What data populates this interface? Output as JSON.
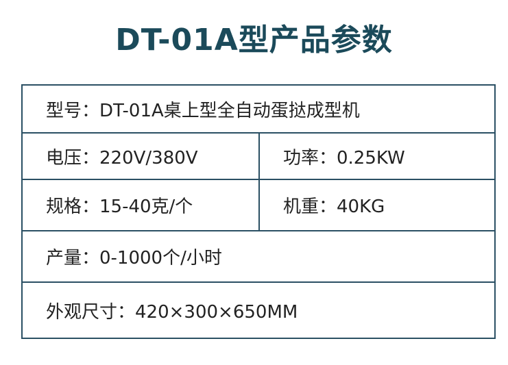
{
  "title": "DT-01A型产品参数",
  "colors": {
    "title": "#1b4a5a",
    "border": "#2a4f63",
    "text": "#222222"
  },
  "rows": [
    {
      "cells": [
        "型号：DT-01A桌上型全自动蛋挞成型机"
      ]
    },
    {
      "cells": [
        "电压：220V/380V",
        "功率：0.25KW"
      ]
    },
    {
      "cells": [
        "规格：15-40克/个",
        "机重：40KG"
      ]
    },
    {
      "cells": [
        "产量：0-1000个/小时"
      ]
    },
    {
      "cells": [
        "外观尺寸：420×300×650MM"
      ]
    }
  ]
}
